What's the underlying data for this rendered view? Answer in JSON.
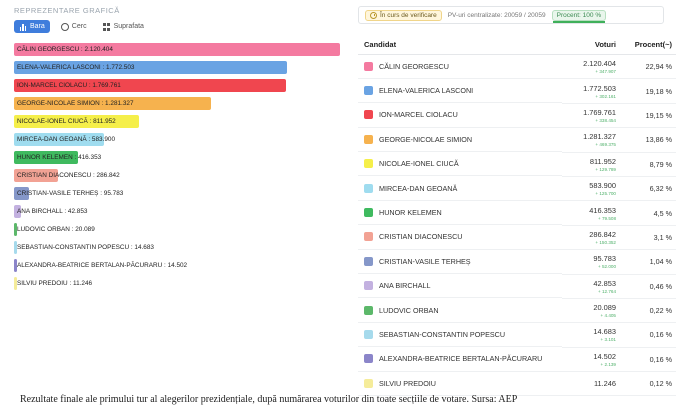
{
  "left": {
    "title": "REPREZENTARE GRAFICĂ",
    "tabs": [
      {
        "label": "Bara",
        "icon": "bar-chart-icon",
        "active": true
      },
      {
        "label": "Cerc",
        "icon": "pie-chart-icon",
        "active": false
      },
      {
        "label": "Suprafata",
        "icon": "grid-icon",
        "active": false
      }
    ]
  },
  "status": {
    "state": "În curs de verificare",
    "pv": "PV-uri centralizate: 20059 / 20059",
    "percent": "Procent: 100 %"
  },
  "table": {
    "headers": {
      "candidate": "Candidat",
      "votes": "Voturi",
      "percent": "Procent(~)"
    }
  },
  "candidates": [
    {
      "name": "CĂLIN GEORGESCU",
      "votes": "2.120.404",
      "delta": "+ 347.907",
      "percent": "22,94 %",
      "color": "#f47aa0",
      "bar_label": "CĂLIN GEORGESCU : 2.120.404",
      "value": 2120404
    },
    {
      "name": "ELENA-VALERICA LASCONI",
      "votes": "1.772.503",
      "delta": "+ 302.161",
      "percent": "19,18 %",
      "color": "#6aa3e3",
      "bar_label": "ELENA-VALERICA LASCONI : 1.772.503",
      "value": 1772503
    },
    {
      "name": "ION-MARCEL CIOLACU",
      "votes": "1.769.761",
      "delta": "+ 338.454",
      "percent": "19,15 %",
      "color": "#f0464f",
      "bar_label": "ION-MARCEL CIOLACU : 1.769.761",
      "value": 1769761
    },
    {
      "name": "GEORGE-NICOLAE SIMION",
      "votes": "1.281.327",
      "delta": "+ 469.375",
      "percent": "13,86 %",
      "color": "#f6b24e",
      "bar_label": "GEORGE-NICOLAE SIMION : 1.281.327",
      "value": 1281327
    },
    {
      "name": "NICOLAE-IONEL CIUCĂ",
      "votes": "811.952",
      "delta": "+ 129.789",
      "percent": "8,79 %",
      "color": "#f5ef4a",
      "bar_label": "NICOLAE-IONEL CIUCĂ : 811.952",
      "value": 811952
    },
    {
      "name": "MIRCEA-DAN GEOANĂ",
      "votes": "583.900",
      "delta": "+ 125.700",
      "percent": "6,32 %",
      "color": "#9fdcef",
      "bar_label": "MIRCEA-DAN GEOANĂ : 583.900",
      "value": 583900
    },
    {
      "name": "HUNOR KELEMEN",
      "votes": "416.353",
      "delta": "+ 79.508",
      "percent": "4,5 %",
      "color": "#3fba5f",
      "bar_label": "HUNOR KELEMEN : 416.353",
      "value": 416353
    },
    {
      "name": "CRISTIAN DIACONESCU",
      "votes": "286.842",
      "delta": "+ 150.352",
      "percent": "3,1 %",
      "color": "#f2a294",
      "bar_label": "CRISTIAN DIACONESCU : 286.842",
      "value": 286842
    },
    {
      "name": "CRISTIAN-VASILE TERHEȘ",
      "votes": "95.783",
      "delta": "+ 52.000",
      "percent": "1,04 %",
      "color": "#8597c9",
      "bar_label": "CRISTIAN-VASILE TERHEȘ : 95.783",
      "value": 95783
    },
    {
      "name": "ANA BIRCHALL",
      "votes": "42.853",
      "delta": "+ 12.764",
      "percent": "0,46 %",
      "color": "#c3b1e0",
      "bar_label": "ANA BIRCHALL : 42.853",
      "value": 42853
    },
    {
      "name": "LUDOVIC ORBAN",
      "votes": "20.089",
      "delta": "+ 4.405",
      "percent": "0,22 %",
      "color": "#5cb86a",
      "bar_label": "LUDOVIC ORBAN : 20.089",
      "value": 20089
    },
    {
      "name": "SEBASTIAN-CONSTANTIN POPESCU",
      "votes": "14.683",
      "delta": "+ 3.101",
      "percent": "0,16 %",
      "color": "#a6daec",
      "bar_label": "SEBASTIAN-CONSTANTIN POPESCU : 14.683",
      "value": 14683
    },
    {
      "name": "ALEXANDRA-BEATRICE BERTALAN-PĂCURARU",
      "votes": "14.502",
      "delta": "+ 2.139",
      "percent": "0,16 %",
      "color": "#8b85c9",
      "bar_label": "ALEXANDRA-BEATRICE BERTALAN-PĂCURARU : 14.502",
      "value": 14502
    },
    {
      "name": "SILVIU PREDOIU",
      "votes": "11.246",
      "delta": "",
      "percent": "0,12 %",
      "color": "#f5ec9a",
      "bar_label": "SILVIU PREDOIU : 11.246",
      "value": 11246
    }
  ],
  "caption": "Rezultate finale ale primului tur al alegerilor prezidențiale, după numărarea voturilor din toate secțiile de votare. Sursa: AEP"
}
